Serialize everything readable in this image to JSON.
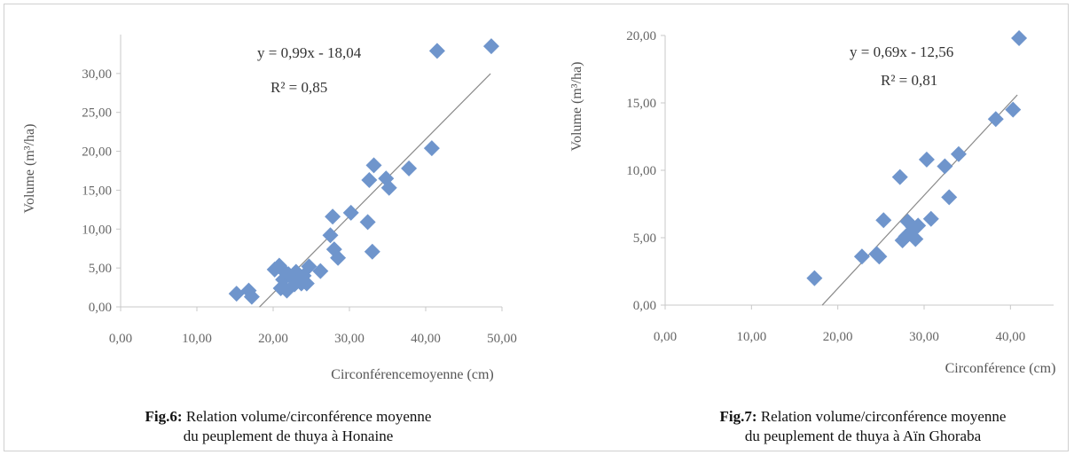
{
  "chart_data": [
    {
      "type": "scatter",
      "title": "",
      "xlabel": "Circonférencemoyenne (cm)",
      "ylabel": "Volume (m³/ha)",
      "xlim": [
        0,
        50
      ],
      "ylim": [
        0,
        35
      ],
      "x_ticks": [
        "0,00",
        "10,00",
        "20,00",
        "30,00",
        "40,00",
        "50,00"
      ],
      "y_ticks": [
        "0,00",
        "5,00",
        "10,00",
        "15,00",
        "20,00",
        "25,00",
        "30,00"
      ],
      "grid": false,
      "marker": "diamond",
      "marker_color": "#6f95cc",
      "trendline": {
        "slope": 0.99,
        "intercept": -18.04,
        "x_range": [
          18.2,
          48.5
        ],
        "color": "#8a8a8a"
      },
      "equation": "y = 0,99x - 18,04",
      "r2": "R² = 0,85",
      "points": [
        {
          "x": 15.2,
          "y": 1.7
        },
        {
          "x": 16.8,
          "y": 2.1
        },
        {
          "x": 17.2,
          "y": 1.3
        },
        {
          "x": 20.2,
          "y": 4.8
        },
        {
          "x": 20.8,
          "y": 5.3
        },
        {
          "x": 21.0,
          "y": 2.4
        },
        {
          "x": 21.3,
          "y": 3.5
        },
        {
          "x": 21.5,
          "y": 4.5
        },
        {
          "x": 21.8,
          "y": 2.1
        },
        {
          "x": 22.0,
          "y": 4.2
        },
        {
          "x": 22.4,
          "y": 3.8
        },
        {
          "x": 22.8,
          "y": 2.9
        },
        {
          "x": 23.0,
          "y": 4.5
        },
        {
          "x": 23.4,
          "y": 3.4
        },
        {
          "x": 23.7,
          "y": 3.0
        },
        {
          "x": 24.0,
          "y": 4.0
        },
        {
          "x": 24.4,
          "y": 3.0
        },
        {
          "x": 24.7,
          "y": 5.2
        },
        {
          "x": 26.2,
          "y": 4.6
        },
        {
          "x": 27.5,
          "y": 9.2
        },
        {
          "x": 27.8,
          "y": 11.6
        },
        {
          "x": 28.0,
          "y": 7.4
        },
        {
          "x": 28.5,
          "y": 6.3
        },
        {
          "x": 30.2,
          "y": 12.1
        },
        {
          "x": 32.4,
          "y": 10.9
        },
        {
          "x": 32.6,
          "y": 16.3
        },
        {
          "x": 33.0,
          "y": 7.1
        },
        {
          "x": 33.2,
          "y": 18.2
        },
        {
          "x": 34.8,
          "y": 16.5
        },
        {
          "x": 35.2,
          "y": 15.3
        },
        {
          "x": 37.8,
          "y": 17.8
        },
        {
          "x": 40.8,
          "y": 20.4
        },
        {
          "x": 41.5,
          "y": 32.9
        },
        {
          "x": 48.6,
          "y": 33.5
        }
      ],
      "caption_fig": "Fig.6:",
      "caption_line1": "Relation volume/circonférence moyenne",
      "caption_line2": "du peuplement de thuya à Honaine"
    },
    {
      "type": "scatter",
      "title": "",
      "xlabel": "Circonférence (cm)",
      "ylabel": "Volume (m³/ha)",
      "xlim": [
        0,
        45
      ],
      "ylim": [
        0,
        20
      ],
      "x_ticks": [
        "0,00",
        "10,00",
        "20,00",
        "30,00",
        "40,00"
      ],
      "y_ticks": [
        "0,00",
        "5,00",
        "10,00",
        "15,00",
        "20,00"
      ],
      "grid": false,
      "marker": "diamond",
      "marker_color": "#6f95cc",
      "trendline": {
        "slope": 0.69,
        "intercept": -12.56,
        "x_range": [
          18.2,
          40.8
        ],
        "color": "#8a8a8a"
      },
      "equation": "y = 0,69x - 12,56",
      "r2": "R² = 0,81",
      "points": [
        {
          "x": 17.3,
          "y": 2.0
        },
        {
          "x": 22.8,
          "y": 3.6
        },
        {
          "x": 24.5,
          "y": 3.8
        },
        {
          "x": 24.8,
          "y": 3.6
        },
        {
          "x": 25.3,
          "y": 6.3
        },
        {
          "x": 27.2,
          "y": 9.5
        },
        {
          "x": 27.5,
          "y": 4.8
        },
        {
          "x": 27.9,
          "y": 5.1
        },
        {
          "x": 28.1,
          "y": 6.2
        },
        {
          "x": 28.4,
          "y": 5.4
        },
        {
          "x": 28.7,
          "y": 5.8
        },
        {
          "x": 29.0,
          "y": 4.9
        },
        {
          "x": 29.3,
          "y": 5.9
        },
        {
          "x": 30.3,
          "y": 10.8
        },
        {
          "x": 30.8,
          "y": 6.4
        },
        {
          "x": 32.4,
          "y": 10.3
        },
        {
          "x": 32.9,
          "y": 8.0
        },
        {
          "x": 34.0,
          "y": 11.2
        },
        {
          "x": 38.3,
          "y": 13.8
        },
        {
          "x": 40.3,
          "y": 14.5
        },
        {
          "x": 41.0,
          "y": 19.8
        }
      ],
      "caption_fig": "Fig.7:",
      "caption_line1": "Relation volume/circonférence moyenne",
      "caption_line2": "du peuplement de thuya à Aïn Ghoraba"
    }
  ]
}
